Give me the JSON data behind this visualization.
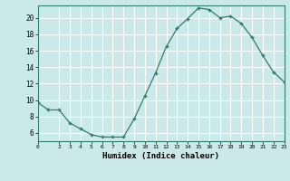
{
  "x": [
    0,
    1,
    2,
    3,
    4,
    5,
    6,
    7,
    8,
    9,
    10,
    11,
    12,
    13,
    14,
    15,
    16,
    17,
    18,
    19,
    20,
    21,
    22,
    23
  ],
  "y": [
    9.7,
    8.8,
    8.8,
    7.2,
    6.5,
    5.8,
    5.5,
    5.5,
    5.5,
    7.7,
    10.5,
    13.3,
    16.5,
    18.7,
    19.9,
    21.2,
    21.0,
    20.0,
    20.2,
    19.3,
    17.6,
    15.4,
    13.4,
    12.2
  ],
  "xlim": [
    0,
    23
  ],
  "ylim": [
    5.0,
    21.5
  ],
  "yticks": [
    6,
    8,
    10,
    12,
    14,
    16,
    18,
    20
  ],
  "xticks": [
    0,
    2,
    3,
    4,
    5,
    6,
    7,
    8,
    9,
    10,
    11,
    12,
    13,
    14,
    15,
    16,
    17,
    18,
    19,
    20,
    21,
    22,
    23
  ],
  "xlabel": "Humidex (Indice chaleur)",
  "line_color": "#2e7d6e",
  "marker": "+",
  "bg_color": "#cce9e9",
  "grid_color": "#ffffff",
  "grid_minor_color": "#ddf0f0"
}
